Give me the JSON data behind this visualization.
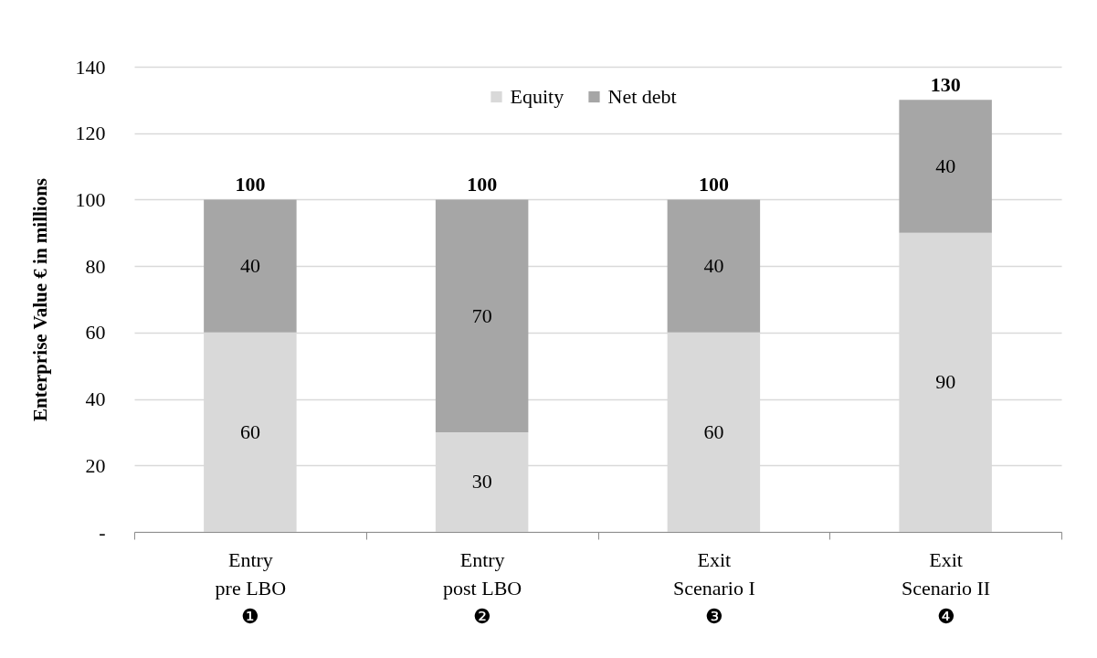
{
  "chart_data": {
    "type": "bar",
    "stacked": true,
    "data_labels": true,
    "ylabel": "Enterprise Value € in millions",
    "categories": [
      "Entry\npre LBO\n❶",
      "Entry\npost LBO\n❷",
      "Exit\nScenario I\n❸",
      "Exit\nScenario II\n❹"
    ],
    "series": [
      {
        "name": "Equity",
        "color": "#d9d9d9",
        "values": [
          60,
          30,
          60,
          90
        ]
      },
      {
        "name": "Net debt",
        "color": "#a6a6a6",
        "values": [
          40,
          70,
          40,
          40
        ]
      }
    ],
    "totals": [
      "100",
      "100",
      "100",
      "130"
    ],
    "ylim": [
      0,
      140
    ],
    "yticks": [
      {
        "value": 0,
        "label": "-"
      },
      20,
      40,
      60,
      80,
      100,
      120,
      140
    ],
    "grid": "y",
    "legend": "top"
  }
}
